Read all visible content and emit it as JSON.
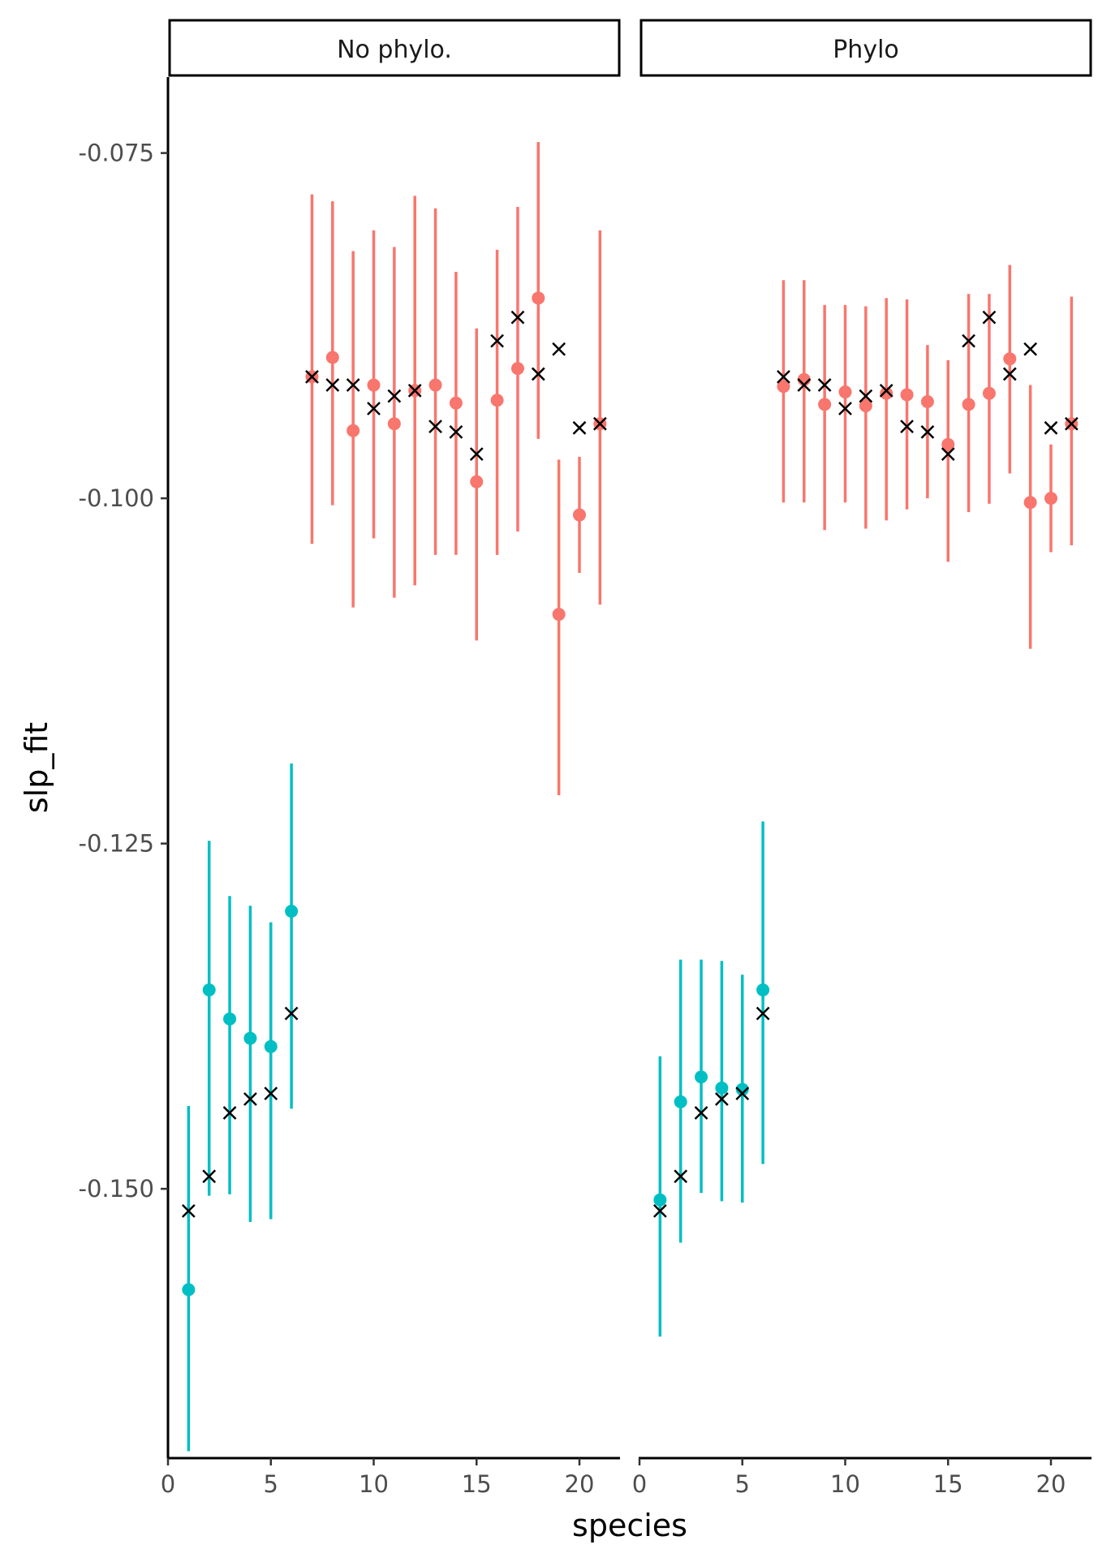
{
  "chart_data": {
    "type": "scatter",
    "xlabel": "species",
    "ylabel": "slp_fit",
    "xlim": [
      0,
      22
    ],
    "ylim": [
      -0.1695,
      -0.0695
    ],
    "x_ticks": [
      0,
      5,
      10,
      15,
      20
    ],
    "y_ticks": [
      -0.075,
      -0.1,
      -0.125,
      -0.15
    ],
    "y_tick_labels": [
      "-0.075",
      "-0.100",
      "-0.125",
      "-0.150"
    ],
    "grid": false,
    "colors": {
      "group_a": "#F8766D",
      "group_b": "#00BFC4",
      "true_marker": "#000000"
    },
    "true_values": [
      -0.1516,
      -0.1491,
      -0.1445,
      -0.1435,
      -0.1431,
      -0.1373,
      -0.0912,
      -0.0918,
      -0.0918,
      -0.0935,
      -0.0926,
      -0.0922,
      -0.0948,
      -0.0952,
      -0.0968,
      -0.0886,
      -0.0869,
      -0.091,
      -0.0892,
      -0.0949,
      -0.0946
    ],
    "group": [
      "b",
      "b",
      "b",
      "b",
      "b",
      "b",
      "a",
      "a",
      "a",
      "a",
      "a",
      "a",
      "a",
      "a",
      "a",
      "a",
      "a",
      "a",
      "a",
      "a",
      "a"
    ],
    "panels": [
      {
        "label": "No phylo.",
        "species": [
          1,
          2,
          3,
          4,
          5,
          6,
          7,
          8,
          9,
          10,
          11,
          12,
          13,
          14,
          15,
          16,
          17,
          18,
          19,
          20,
          21
        ],
        "estimate": [
          -0.1573,
          -0.1356,
          -0.1377,
          -0.1391,
          -0.1397,
          -0.1299,
          -0.0912,
          -0.0898,
          -0.0951,
          -0.0918,
          -0.0946,
          -0.0922,
          -0.0918,
          -0.0931,
          -0.0988,
          -0.0929,
          -0.0906,
          -0.0855,
          -0.1084,
          -0.1012,
          -0.0946
        ],
        "lower": [
          -0.169,
          -0.1505,
          -0.1504,
          -0.1524,
          -0.1522,
          -0.1442,
          -0.1033,
          -0.1005,
          -0.1079,
          -0.1029,
          -0.1072,
          -0.1063,
          -0.1041,
          -0.1041,
          -0.1103,
          -0.1041,
          -0.1024,
          -0.0957,
          -0.1215,
          -0.1054,
          -0.1077
        ],
        "upper": [
          -0.144,
          -0.1248,
          -0.1288,
          -0.1295,
          -0.1307,
          -0.1192,
          -0.078,
          -0.0785,
          -0.0821,
          -0.0806,
          -0.0818,
          -0.0781,
          -0.079,
          -0.0836,
          -0.0877,
          -0.082,
          -0.0789,
          -0.0742,
          -0.0972,
          -0.097,
          -0.0806
        ]
      },
      {
        "label": "Phylo",
        "species": [
          1,
          2,
          3,
          4,
          5,
          6,
          7,
          8,
          9,
          10,
          11,
          12,
          13,
          14,
          15,
          16,
          17,
          18,
          19,
          20,
          21
        ],
        "estimate": [
          -0.1508,
          -0.1437,
          -0.1419,
          -0.1427,
          -0.1428,
          -0.1356,
          -0.0919,
          -0.0914,
          -0.0932,
          -0.0923,
          -0.0933,
          -0.0924,
          -0.0925,
          -0.093,
          -0.0961,
          -0.0932,
          -0.0924,
          -0.0899,
          -0.1003,
          -0.1,
          -0.0946
        ],
        "lower": [
          -0.1607,
          -0.1539,
          -0.1503,
          -0.1509,
          -0.151,
          -0.1482,
          -0.1003,
          -0.1003,
          -0.1023,
          -0.1003,
          -0.1022,
          -0.1016,
          -0.1008,
          -0.1,
          -0.1046,
          -0.101,
          -0.1004,
          -0.0982,
          -0.1109,
          -0.1039,
          -0.1034
        ],
        "upper": [
          -0.1404,
          -0.1334,
          -0.1334,
          -0.1335,
          -0.1345,
          -0.1234,
          -0.0842,
          -0.0842,
          -0.086,
          -0.086,
          -0.0861,
          -0.0855,
          -0.0856,
          -0.0889,
          -0.09,
          -0.0852,
          -0.0852,
          -0.0831,
          -0.0918,
          -0.0961,
          -0.0854
        ]
      }
    ]
  }
}
